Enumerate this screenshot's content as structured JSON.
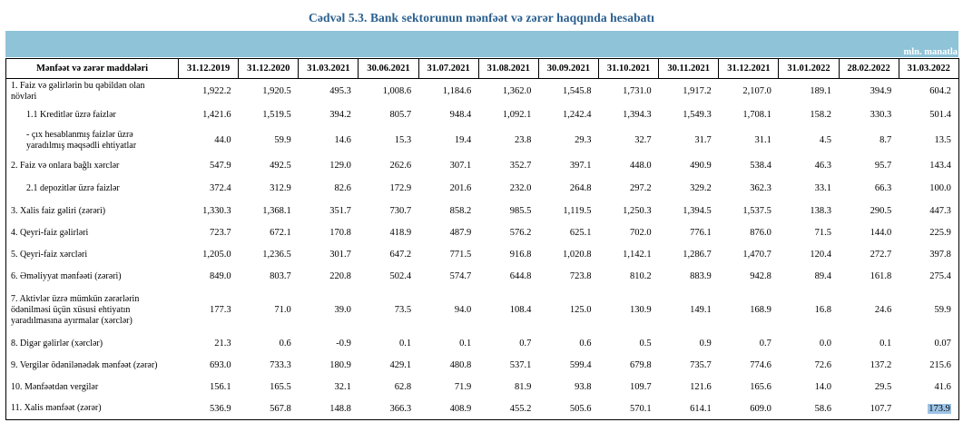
{
  "title": "Cədvəl 5.3. Bank sektorunun mənfəət və zərər haqqında hesabatı",
  "unit": "mln. manatla",
  "columns": [
    "Mənfəət və zərər maddələri",
    "31.12.2019",
    "31.12.2020",
    "31.03.2021",
    "30.06.2021",
    "31.07.2021",
    "31.08.2021",
    "30.09.2021",
    "31.10.2021",
    "30.11.2021",
    "31.12.2021",
    "31.01.2022",
    "28.02.2022",
    "31.03.2022"
  ],
  "rows": [
    {
      "label": "1. Faiz və gəlirlərin bu qəbildən olan növləri",
      "values": [
        "1,922.2",
        "1,920.5",
        "495.3",
        "1,008.6",
        "1,184.6",
        "1,362.0",
        "1,545.8",
        "1,731.0",
        "1,917.2",
        "2,107.0",
        "189.1",
        "394.9",
        "604.2"
      ]
    },
    {
      "label": "1.1 Kreditlər üzrə faizlər",
      "values": [
        "1,421.6",
        "1,519.5",
        "394.2",
        "805.7",
        "948.4",
        "1,092.1",
        "1,242.4",
        "1,394.3",
        "1,549.3",
        "1,708.1",
        "158.2",
        "330.3",
        "501.4"
      ]
    },
    {
      "label": "- çıx hesablanmış faizlər üzrə yaradılmış məqsədli ehtiyatlar",
      "values": [
        "44.0",
        "59.9",
        "14.6",
        "15.3",
        "19.4",
        "23.8",
        "29.3",
        "32.7",
        "31.7",
        "31.1",
        "4.5",
        "8.7",
        "13.5"
      ]
    },
    {
      "label": "2. Faiz və onlara bağlı xərclər",
      "values": [
        "547.9",
        "492.5",
        "129.0",
        "262.6",
        "307.1",
        "352.7",
        "397.1",
        "448.0",
        "490.9",
        "538.4",
        "46.3",
        "95.7",
        "143.4"
      ]
    },
    {
      "label": "2.1 depozitlər üzrə faizlər",
      "values": [
        "372.4",
        "312.9",
        "82.6",
        "172.9",
        "201.6",
        "232.0",
        "264.8",
        "297.2",
        "329.2",
        "362.3",
        "33.1",
        "66.3",
        "100.0"
      ]
    },
    {
      "label": "3. Xalis faiz gəliri (zərəri)",
      "values": [
        "1,330.3",
        "1,368.1",
        "351.7",
        "730.7",
        "858.2",
        "985.5",
        "1,119.5",
        "1,250.3",
        "1,394.5",
        "1,537.5",
        "138.3",
        "290.5",
        "447.3"
      ]
    },
    {
      "label": "4. Qeyri-faiz gəlirləri",
      "values": [
        "723.7",
        "672.1",
        "170.8",
        "418.9",
        "487.9",
        "576.2",
        "625.1",
        "702.0",
        "776.1",
        "876.0",
        "71.5",
        "144.0",
        "225.9"
      ]
    },
    {
      "label": "5. Qeyri-faiz xərcləri",
      "values": [
        "1,205.0",
        "1,236.5",
        "301.7",
        "647.2",
        "771.5",
        "916.8",
        "1,020.8",
        "1,142.1",
        "1,286.7",
        "1,470.7",
        "120.4",
        "272.7",
        "397.8"
      ]
    },
    {
      "label": "6. Əməliyyat mənfəəti (zərəri)",
      "values": [
        "849.0",
        "803.7",
        "220.8",
        "502.4",
        "574.7",
        "644.8",
        "723.8",
        "810.2",
        "883.9",
        "942.8",
        "89.4",
        "161.8",
        "275.4"
      ]
    },
    {
      "label": "7. Aktivlər üzrə mümkün zərərlərin ödənilməsi üçün xüsusi ehtiyatın yaradılmasına ayırmalar (xərclər)",
      "values": [
        "177.3",
        "71.0",
        "39.0",
        "73.5",
        "94.0",
        "108.4",
        "125.0",
        "130.9",
        "149.1",
        "168.9",
        "16.8",
        "24.6",
        "59.9"
      ]
    },
    {
      "label": "8. Digər gəlirlər (xərclər)",
      "values": [
        "21.3",
        "0.6",
        "-0.9",
        "0.1",
        "0.1",
        "0.7",
        "0.6",
        "0.5",
        "0.9",
        "0.7",
        "0.0",
        "0.1",
        "0.07"
      ]
    },
    {
      "label": "9. Vergilər ödənilənədək mənfəət (zərər)",
      "values": [
        "693.0",
        "733.3",
        "180.9",
        "429.1",
        "480.8",
        "537.1",
        "599.4",
        "679.8",
        "735.7",
        "774.6",
        "72.6",
        "137.2",
        "215.6"
      ]
    },
    {
      "label": "10. Mənfəətdən vergilər",
      "values": [
        "156.1",
        "165.5",
        "32.1",
        "62.8",
        "71.9",
        "81.9",
        "93.8",
        "109.7",
        "121.6",
        "165.6",
        "14.0",
        "29.5",
        "41.6"
      ]
    },
    {
      "label": "11. Xalis mənfəət (zərər)",
      "values": [
        "536.9",
        "567.8",
        "148.8",
        "366.3",
        "408.9",
        "455.2",
        "505.6",
        "570.1",
        "614.1",
        "609.0",
        "58.6",
        "107.7",
        "173.9"
      ]
    }
  ]
}
